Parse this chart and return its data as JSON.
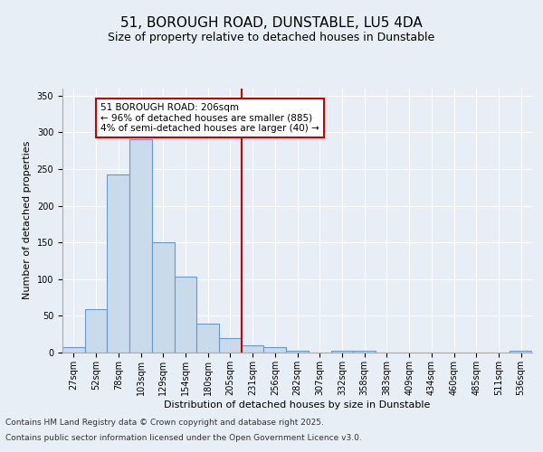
{
  "title": "51, BOROUGH ROAD, DUNSTABLE, LU5 4DA",
  "subtitle": "Size of property relative to detached houses in Dunstable",
  "xlabel": "Distribution of detached houses by size in Dunstable",
  "ylabel": "Number of detached properties",
  "categories": [
    "27sqm",
    "52sqm",
    "78sqm",
    "103sqm",
    "129sqm",
    "154sqm",
    "180sqm",
    "205sqm",
    "231sqm",
    "256sqm",
    "282sqm",
    "307sqm",
    "332sqm",
    "358sqm",
    "383sqm",
    "409sqm",
    "434sqm",
    "460sqm",
    "485sqm",
    "511sqm",
    "536sqm"
  ],
  "values": [
    8,
    59,
    243,
    290,
    150,
    103,
    40,
    20,
    10,
    7,
    3,
    0,
    3,
    2,
    0,
    0,
    0,
    0,
    0,
    0,
    2
  ],
  "bar_color": "#c9daea",
  "bar_edge_color": "#6699cc",
  "annotation_text": "51 BOROUGH ROAD: 206sqm\n← 96% of detached houses are smaller (885)\n4% of semi-detached houses are larger (40) →",
  "annotation_box_color": "#ffffff",
  "annotation_box_edge": "#cc0000",
  "annotation_text_color": "#000000",
  "vline_color": "#cc0000",
  "footer_line1": "Contains HM Land Registry data © Crown copyright and database right 2025.",
  "footer_line2": "Contains public sector information licensed under the Open Government Licence v3.0.",
  "bg_color": "#e8eef5",
  "plot_bg_color": "#e8eef5",
  "ylim": [
    0,
    360
  ],
  "yticks": [
    0,
    50,
    100,
    150,
    200,
    250,
    300,
    350
  ],
  "title_fontsize": 11,
  "subtitle_fontsize": 9,
  "axis_label_fontsize": 8,
  "tick_fontsize": 7,
  "footer_fontsize": 6.5,
  "annotation_fontsize": 7.5
}
